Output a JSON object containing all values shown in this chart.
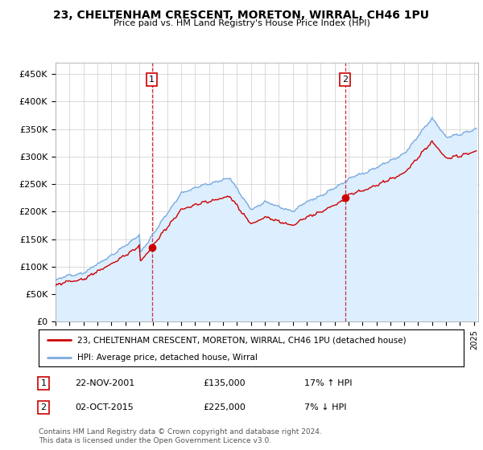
{
  "title": "23, CHELTENHAM CRESCENT, MORETON, WIRRAL, CH46 1PU",
  "subtitle": "Price paid vs. HM Land Registry's House Price Index (HPI)",
  "yticks": [
    0,
    50000,
    100000,
    150000,
    200000,
    250000,
    300000,
    350000,
    400000,
    450000
  ],
  "ylim": [
    0,
    470000
  ],
  "xlim_start": 1995.0,
  "xlim_end": 2025.3,
  "marker1_year": 2001.9,
  "marker1_price": 135000,
  "marker2_year": 2015.75,
  "marker2_price": 225000,
  "sale_color": "#cc0000",
  "hpi_color": "#7aaadd",
  "hpi_fill_color": "#ddeeff",
  "legend_label_sale": "23, CHELTENHAM CRESCENT, MORETON, WIRRAL, CH46 1PU (detached house)",
  "legend_label_hpi": "HPI: Average price, detached house, Wirral",
  "table_row1": [
    "1",
    "22-NOV-2001",
    "£135,000",
    "17% ↑ HPI"
  ],
  "table_row2": [
    "2",
    "02-OCT-2015",
    "£225,000",
    "7% ↓ HPI"
  ],
  "footer": "Contains HM Land Registry data © Crown copyright and database right 2024.\nThis data is licensed under the Open Government Licence v3.0.",
  "background_color": "#ffffff",
  "grid_color": "#cccccc"
}
